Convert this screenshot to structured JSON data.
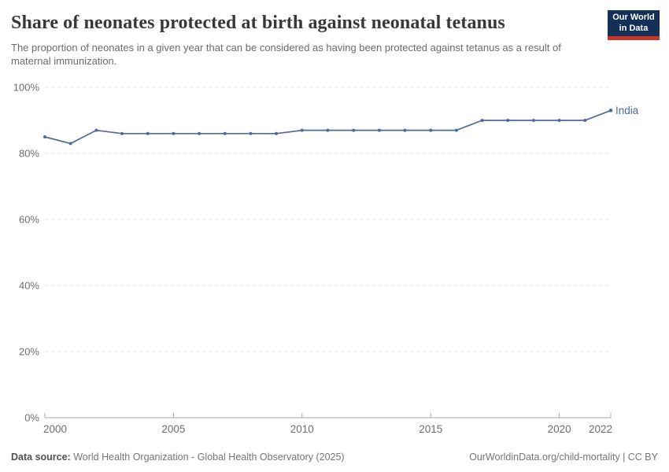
{
  "header": {
    "title": "Share of neonates protected at birth against neonatal tetanus",
    "subtitle": "The proportion of neonates in a given year that can be considered as having been protected against tetanus as a result of maternal immunization.",
    "logo": {
      "line1": "Our World",
      "line2": "in Data",
      "background_color": "#143056",
      "stripe_color": "#cc3425"
    }
  },
  "chart_data": {
    "type": "line",
    "title": "Share of neonates protected at birth against neonatal tetanus",
    "xlabel": "",
    "ylabel": "",
    "x": [
      2000,
      2001,
      2002,
      2003,
      2004,
      2005,
      2006,
      2007,
      2008,
      2009,
      2010,
      2011,
      2012,
      2013,
      2014,
      2015,
      2016,
      2017,
      2018,
      2019,
      2020,
      2021,
      2022
    ],
    "series": [
      {
        "name": "India",
        "color": "#4C6A9C",
        "values": [
          85,
          83,
          87,
          86,
          86,
          86,
          86,
          86,
          86,
          86,
          87,
          87,
          87,
          87,
          87,
          87,
          87,
          90,
          90,
          90,
          90,
          90,
          93
        ]
      }
    ],
    "xlim": [
      2000,
      2022
    ],
    "ylim": [
      0,
      100
    ],
    "yticks": [
      0,
      20,
      40,
      60,
      80,
      100
    ],
    "ytick_suffix": "%",
    "xticks": [
      2000,
      2005,
      2010,
      2015,
      2020,
      2022
    ],
    "grid": "horizontal-dashed",
    "legend_position": "end-of-line",
    "colors": {
      "gridline": "#dcdcdc",
      "axis_line": "#a7a7a7",
      "tick_label": "#6e6e6e"
    }
  },
  "footer": {
    "datasource_label": "Data source:",
    "datasource_value": "World Health Organization - Global Health Observatory (2025)",
    "link": "OurWorldinData.org/child-mortality | CC BY"
  }
}
